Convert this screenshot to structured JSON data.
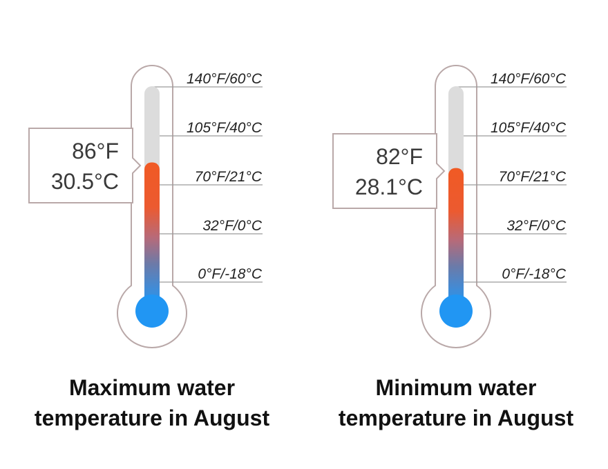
{
  "chart_data": [
    {
      "type": "thermometer",
      "caption_lines": [
        "Maximum water",
        "temperature in August"
      ],
      "value_f": 86,
      "value_c": 30.5,
      "value_f_label": "86°F",
      "value_c_label": "30.5°C",
      "scale_ticks": [
        {
          "f": 140,
          "c": 60,
          "label": "140°F/60°C"
        },
        {
          "f": 105,
          "c": 40,
          "label": "105°F/40°C"
        },
        {
          "f": 70,
          "c": 21,
          "label": "70°F/21°C"
        },
        {
          "f": 32,
          "c": 0,
          "label": "32°F/0°C"
        },
        {
          "f": 0,
          "c": -18,
          "label": "0°F/-18°C"
        }
      ]
    },
    {
      "type": "thermometer",
      "caption_lines": [
        "Minimum water",
        "temperature in August"
      ],
      "value_f": 82,
      "value_c": 28.1,
      "value_f_label": "82°F",
      "value_c_label": "28.1°C",
      "scale_ticks": [
        {
          "f": 140,
          "c": 60,
          "label": "140°F/60°C"
        },
        {
          "f": 105,
          "c": 40,
          "label": "105°F/40°C"
        },
        {
          "f": 70,
          "c": 21,
          "label": "70°F/21°C"
        },
        {
          "f": 32,
          "c": 0,
          "label": "32°F/0°C"
        },
        {
          "f": 0,
          "c": -18,
          "label": "0°F/-18°C"
        }
      ]
    }
  ],
  "colors": {
    "outline": "#b9a8a8",
    "tube_empty": "#dcdcdc",
    "hot": "#f05a24",
    "cold": "#2196f3",
    "tick_line": "#9a9a9a"
  }
}
